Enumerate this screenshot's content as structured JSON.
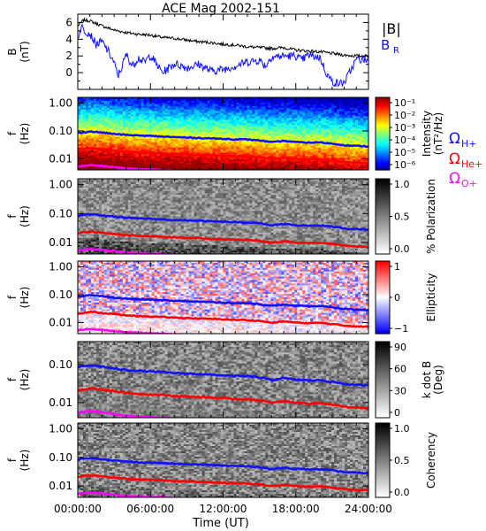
{
  "chart_data": {
    "type": "line",
    "title": "ACE Mag 2002-151",
    "xlabel": "Time (UT)",
    "x_ticks": [
      "00:00:00",
      "06:00:00",
      "12:00:00",
      "18:00:00",
      "24:00:00"
    ],
    "x_range_hours": [
      0,
      24
    ],
    "colors": {
      "B_total": "#000000",
      "B_R": "#1010ff",
      "gyro_H": "#1010ff",
      "gyro_He": "#ff0000",
      "gyro_O": "#ff00ff"
    },
    "panels": [
      {
        "id": "b-field",
        "ylabel": "B",
        "yunit": "(nT)",
        "ylim": [
          -2,
          7
        ],
        "y_ticks": [
          "6",
          "4",
          "2",
          "0"
        ],
        "y_tick_values": [
          6,
          4,
          2,
          0
        ],
        "legend": [
          "|B|",
          "B",
          "R"
        ],
        "series": [
          {
            "name": "|B|",
            "hours": [
              0,
              0.5,
              1,
              1.5,
              2,
              3,
              4,
              5,
              6,
              7,
              8,
              9,
              10,
              11,
              12,
              13,
              14,
              15,
              16,
              17,
              18,
              19,
              20,
              21,
              22,
              23,
              24
            ],
            "values": [
              5.6,
              6.3,
              6.2,
              5.9,
              5.6,
              5.1,
              4.8,
              4.6,
              4.5,
              4.2,
              4.1,
              3.9,
              3.7,
              3.6,
              3.4,
              3.3,
              3.1,
              3.0,
              2.9,
              3.0,
              2.7,
              2.6,
              2.5,
              2.3,
              2.1,
              2.0,
              2.0
            ]
          },
          {
            "name": "B_R",
            "hours": [
              0,
              0.3,
              0.6,
              1,
              1.5,
              2,
              2.5,
              3,
              3.3,
              3.6,
              4,
              4.5,
              5,
              5.5,
              6,
              6.5,
              7,
              8,
              9,
              10,
              11,
              12,
              13,
              14,
              15,
              15.5,
              16,
              17,
              18,
              18.5,
              19,
              20,
              20.5,
              21,
              21.5,
              22,
              23,
              24
            ],
            "values": [
              4.2,
              5.5,
              5.0,
              4.7,
              3.4,
              3.7,
              2.6,
              1.2,
              -0.4,
              0.5,
              2.2,
              0.8,
              1.8,
              1.2,
              2.1,
              1.0,
              0.0,
              1.1,
              0.6,
              1.0,
              0.2,
              0.4,
              0.8,
              1.3,
              1.5,
              0.8,
              1.9,
              2.0,
              2.0,
              1.5,
              2.1,
              1.8,
              0.0,
              -1.1,
              -1.3,
              -1.2,
              1.6,
              1.5
            ]
          }
        ]
      },
      {
        "id": "intensity",
        "ylabel": "f",
        "yunit": "(Hz)",
        "scale": "log",
        "ylim": [
          0.004,
          1.6
        ],
        "y_ticks": [
          "1.00",
          "0.10",
          "0.01"
        ],
        "y_tick_values": [
          1,
          0.1,
          0.01
        ],
        "colorbar": {
          "label": "Intensity",
          "unit": "(nT²/Hz)",
          "ticks": [
            "10⁻¹",
            "10⁻²",
            "10⁻³",
            "10⁻⁴",
            "10⁻⁵",
            "10⁻⁶"
          ]
        }
      },
      {
        "id": "polarization",
        "ylabel": "f",
        "yunit": "(Hz)",
        "scale": "log",
        "ylim": [
          0.004,
          1.6
        ],
        "y_ticks": [
          "1.00",
          "0.10",
          "0.01"
        ],
        "y_tick_values": [
          1,
          0.1,
          0.01
        ],
        "colorbar": {
          "label": "% Polarization",
          "unit": "",
          "ticks": [
            "1.0",
            "0.5",
            "0.0"
          ]
        }
      },
      {
        "id": "ellipticity",
        "ylabel": "f",
        "yunit": "(Hz)",
        "scale": "log",
        "ylim": [
          0.004,
          1.6
        ],
        "y_ticks": [
          "1.00",
          "0.10",
          "0.01"
        ],
        "y_tick_values": [
          1,
          0.1,
          0.01
        ],
        "colorbar": {
          "label": "Ellipticity",
          "unit": "",
          "ticks": [
            "1",
            "0",
            "−1"
          ]
        }
      },
      {
        "id": "kdotb",
        "ylabel": "f",
        "yunit": "(Hz)",
        "scale": "log",
        "ylim": [
          0.004,
          0.4
        ],
        "y_ticks": [
          "0.10",
          "0.01"
        ],
        "y_tick_values": [
          0.1,
          0.01
        ],
        "colorbar": {
          "label": "k dot B",
          "unit": "(Deg)",
          "ticks": [
            "90",
            "60",
            "30",
            "0"
          ]
        }
      },
      {
        "id": "coherency",
        "ylabel": "f",
        "yunit": "(Hz)",
        "scale": "log",
        "ylim": [
          0.004,
          1.6
        ],
        "y_ticks": [
          "1.00",
          "0.10",
          "0.01"
        ],
        "y_tick_values": [
          1,
          0.1,
          0.01
        ],
        "colorbar": {
          "label": "Coherency",
          "unit": "",
          "ticks": [
            "1.0",
            "0.5",
            "0.0"
          ]
        }
      }
    ],
    "gyro_legend": [
      {
        "symbol": "Ω",
        "sub": "H+"
      },
      {
        "symbol": "Ω",
        "sub": "He+"
      },
      {
        "symbol": "Ω",
        "sub": "O+"
      }
    ],
    "gyrofrequency_hz": {
      "hours": [
        0,
        1,
        2,
        3,
        4,
        5,
        6,
        7,
        8,
        9,
        10,
        11,
        12,
        13,
        14,
        15,
        16,
        17,
        18,
        19,
        20,
        21,
        22,
        23,
        24
      ],
      "H": [
        0.085,
        0.095,
        0.088,
        0.078,
        0.072,
        0.068,
        0.066,
        0.063,
        0.06,
        0.058,
        0.056,
        0.054,
        0.052,
        0.05,
        0.049,
        0.046,
        0.039,
        0.044,
        0.04,
        0.038,
        0.039,
        0.035,
        0.031,
        0.029,
        0.028
      ],
      "He": [
        0.021,
        0.024,
        0.022,
        0.02,
        0.018,
        0.017,
        0.0165,
        0.0158,
        0.015,
        0.0145,
        0.014,
        0.0135,
        0.013,
        0.0125,
        0.0122,
        0.0115,
        0.0098,
        0.011,
        0.01,
        0.0095,
        0.0098,
        0.0088,
        0.0078,
        0.0073,
        0.007
      ],
      "O": [
        0.0053,
        0.006,
        0.0055,
        0.005,
        0.0045,
        0.0043,
        0.0041,
        0.004,
        0.0038,
        0.0036,
        0.0035,
        0.0034,
        0.0033,
        0.0031,
        0.0031,
        0.0029,
        0.0024,
        0.0028,
        0.0025,
        0.0024,
        0.0025,
        0.0022,
        0.002,
        0.0018,
        0.0018
      ]
    }
  }
}
